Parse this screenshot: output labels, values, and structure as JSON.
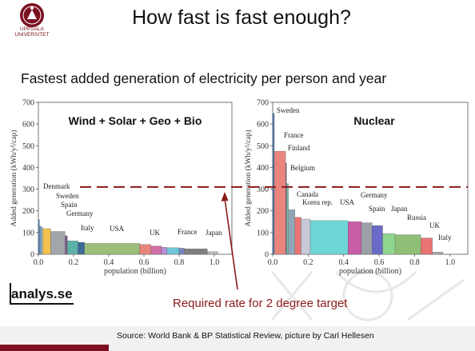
{
  "logo": {
    "name": "uppsala-university-seal",
    "label": "UPPSALA UNIVERSITET"
  },
  "header": {
    "title": "How fast is fast enough?"
  },
  "subtitle": "Fastest added generation of electricity per person and year",
  "branding": {
    "analys": "analys.se"
  },
  "annotation": {
    "required_rate": "Required rate for 2 degree target"
  },
  "footer": {
    "source": "Source: World Bank & BP Statistical Review, picture by Carl Hellesen"
  },
  "colors": {
    "accent": "#7a1020",
    "dashed_line": "#8b1a1a"
  },
  "chart_data": [
    {
      "type": "bar",
      "title": "Wind + Solar + Geo + Bio",
      "xlabel": "population (billion)",
      "ylabel": "Added generation (kWh/y²/cap)",
      "xlim": [
        0,
        1.1
      ],
      "ylim": [
        0,
        700
      ],
      "xticks": [
        "0.0",
        "0.2",
        "0.4",
        "0.6",
        "0.8",
        "1.0"
      ],
      "yticks": [
        "0",
        "100",
        "200",
        "300",
        "400",
        "500",
        "600",
        "700"
      ],
      "reference_line": 310,
      "bars": [
        {
          "label": "Denmark",
          "x0": 0.0,
          "x1": 0.006,
          "value": 160,
          "color": "#4a78b0"
        },
        {
          "label": "",
          "x0": 0.006,
          "x1": 0.014,
          "value": 130,
          "color": "#6fa3c8"
        },
        {
          "label": "Sweden",
          "x0": 0.014,
          "x1": 0.024,
          "value": 125,
          "color": "#8fb1d8"
        },
        {
          "label": "Spain",
          "x0": 0.024,
          "x1": 0.07,
          "value": 118,
          "color": "#f2c14e"
        },
        {
          "label": "Germany",
          "x0": 0.07,
          "x1": 0.152,
          "value": 105,
          "color": "#a2a6ab"
        },
        {
          "label": "",
          "x0": 0.152,
          "x1": 0.165,
          "value": 85,
          "color": "#7d5a8c"
        },
        {
          "label": "Italy",
          "x0": 0.165,
          "x1": 0.225,
          "value": 62,
          "color": "#5db3a7"
        },
        {
          "label": "",
          "x0": 0.225,
          "x1": 0.262,
          "value": 55,
          "color": "#3e6a96"
        },
        {
          "label": "USA",
          "x0": 0.262,
          "x1": 0.575,
          "value": 50,
          "color": "#9bbf7a"
        },
        {
          "label": "",
          "x0": 0.575,
          "x1": 0.64,
          "value": 45,
          "color": "#e8867e"
        },
        {
          "label": "UK",
          "x0": 0.64,
          "x1": 0.7,
          "value": 38,
          "color": "#d06fa6"
        },
        {
          "label": "",
          "x0": 0.7,
          "x1": 0.73,
          "value": 32,
          "color": "#b88fd6"
        },
        {
          "label": "France",
          "x0": 0.73,
          "x1": 0.8,
          "value": 30,
          "color": "#6fc6d6"
        },
        {
          "label": "",
          "x0": 0.8,
          "x1": 0.83,
          "value": 28,
          "color": "#7a86c2"
        },
        {
          "label": "Japan",
          "x0": 0.83,
          "x1": 0.96,
          "value": 25,
          "color": "#7f7f7f"
        },
        {
          "label": "",
          "x0": 0.96,
          "x1": 1.02,
          "value": 12,
          "color": "#b9b9b9"
        }
      ]
    },
    {
      "type": "bar",
      "title": "Nuclear",
      "xlabel": "population (billion)",
      "ylabel": "Added generation (kWh/y²/cap)",
      "xlim": [
        0,
        1.1
      ],
      "ylim": [
        0,
        700
      ],
      "xticks": [
        "0.0",
        "0.2",
        "0.4",
        "0.6",
        "0.8",
        "1.0"
      ],
      "yticks": [
        "0",
        "100",
        "200",
        "300",
        "400",
        "500",
        "600",
        "700"
      ],
      "reference_line": 310,
      "bars": [
        {
          "label": "Sweden",
          "x0": 0.0,
          "x1": 0.009,
          "value": 650,
          "color": "#4a78b0"
        },
        {
          "label": "France",
          "x0": 0.009,
          "x1": 0.073,
          "value": 475,
          "color": "#e8867e"
        },
        {
          "label": "Finland",
          "x0": 0.073,
          "x1": 0.078,
          "value": 420,
          "color": "#7d5a8c"
        },
        {
          "label": "Belgium",
          "x0": 0.078,
          "x1": 0.089,
          "value": 325,
          "color": "#7fb6a6"
        },
        {
          "label": "",
          "x0": 0.089,
          "x1": 0.125,
          "value": 205,
          "color": "#8fa6b8"
        },
        {
          "label": "Canada",
          "x0": 0.125,
          "x1": 0.16,
          "value": 170,
          "color": "#e87474"
        },
        {
          "label": "Korea rep.",
          "x0": 0.16,
          "x1": 0.212,
          "value": 162,
          "color": "#c8c8d8"
        },
        {
          "label": "USA",
          "x0": 0.212,
          "x1": 0.425,
          "value": 155,
          "color": "#6fd6d6"
        },
        {
          "label": "",
          "x0": 0.425,
          "x1": 0.5,
          "value": 150,
          "color": "#c75ea8"
        },
        {
          "label": "Germany",
          "x0": 0.5,
          "x1": 0.56,
          "value": 145,
          "color": "#9aa0a6"
        },
        {
          "label": "Spain",
          "x0": 0.56,
          "x1": 0.62,
          "value": 132,
          "color": "#6a6ac8"
        },
        {
          "label": "Japan",
          "x0": 0.62,
          "x1": 0.69,
          "value": 95,
          "color": "#8fd68f"
        },
        {
          "label": "Russia",
          "x0": 0.69,
          "x1": 0.835,
          "value": 90,
          "color": "#8fbf76"
        },
        {
          "label": "UK",
          "x0": 0.835,
          "x1": 0.9,
          "value": 75,
          "color": "#e87474"
        },
        {
          "label": "Italy",
          "x0": 0.9,
          "x1": 0.96,
          "value": 10,
          "color": "#aaaaaa"
        }
      ]
    }
  ]
}
